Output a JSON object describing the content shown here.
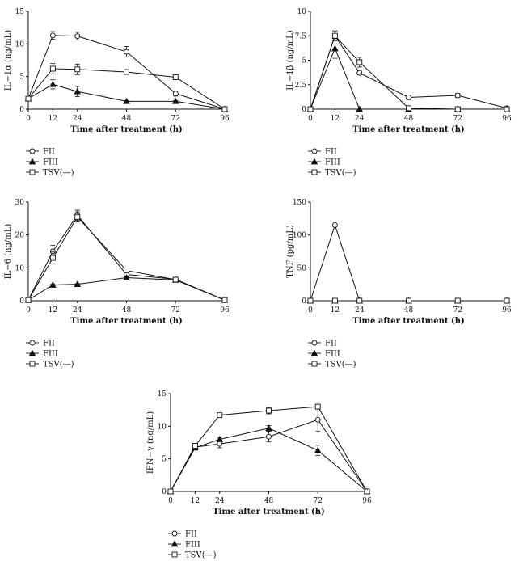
{
  "chart_data": [
    {
      "type": "line",
      "ylabel": "IL−1α (ng/mL)",
      "xlabel": "Time after treatment (h)",
      "x": [
        0,
        12,
        24,
        48,
        72,
        96
      ],
      "x_ticks": [
        "0",
        "12",
        "24",
        "48",
        "72",
        "96"
      ],
      "ylim": [
        0,
        15
      ],
      "y_ticks": [
        "0",
        "5",
        "10",
        "15"
      ],
      "grid": false,
      "legend_position": "below",
      "series": [
        {
          "name": "FII",
          "marker": "circle-open",
          "values": [
            1.6,
            11.3,
            11.2,
            8.8,
            2.4,
            0
          ],
          "errors": [
            0.3,
            0.6,
            0.6,
            0.8,
            0.4,
            0
          ]
        },
        {
          "name": "FIII",
          "marker": "triangle-filled",
          "values": [
            1.6,
            3.8,
            2.7,
            1.2,
            1.2,
            0
          ],
          "errors": [
            0.3,
            0.7,
            0.8,
            0.1,
            0.1,
            0
          ]
        },
        {
          "name": "TSV(—)",
          "marker": "square-open",
          "values": [
            1.6,
            6.2,
            6.1,
            5.7,
            4.9,
            0
          ],
          "errors": [
            0.3,
            0.8,
            0.8,
            0.1,
            0.1,
            0
          ]
        }
      ]
    },
    {
      "type": "line",
      "ylabel": "IL−1β (ng/mL)",
      "xlabel": "Time after treatment (h)",
      "x": [
        0,
        12,
        24,
        48,
        72,
        96
      ],
      "x_ticks": [
        "0",
        "12",
        "24",
        "48",
        "72",
        "96"
      ],
      "ylim": [
        0,
        10
      ],
      "y_ticks": [
        "0",
        "2.5",
        "5",
        "7.5",
        "10"
      ],
      "grid": false,
      "legend_position": "below",
      "series": [
        {
          "name": "FII",
          "marker": "circle-open",
          "values": [
            0,
            7.5,
            3.7,
            1.2,
            1.4,
            0.1
          ],
          "errors": [
            0,
            0.5,
            0.2,
            0.2,
            0.2,
            0
          ]
        },
        {
          "name": "FIII",
          "marker": "triangle-filled",
          "values": [
            0,
            6.2,
            0,
            0,
            0,
            0
          ],
          "errors": [
            0,
            1.0,
            0,
            0,
            0,
            0
          ]
        },
        {
          "name": "TSV(—)",
          "marker": "square-open",
          "values": [
            0,
            7.5,
            4.8,
            0.1,
            0,
            0
          ],
          "errors": [
            0,
            0.5,
            0.5,
            0,
            0,
            0
          ]
        }
      ]
    },
    {
      "type": "line",
      "ylabel": "IL−6 (ng/mL)",
      "xlabel": "Time after treatment (h)",
      "x": [
        0,
        12,
        24,
        48,
        72,
        96
      ],
      "x_ticks": [
        "0",
        "12",
        "24",
        "48",
        "72",
        "96"
      ],
      "ylim": [
        0,
        30
      ],
      "y_ticks": [
        "0",
        "10",
        "20",
        "30"
      ],
      "grid": false,
      "legend_position": "below",
      "series": [
        {
          "name": "FII",
          "marker": "circle-open",
          "values": [
            0.2,
            15.0,
            26.0,
            8.0,
            6.5,
            0.2
          ],
          "errors": [
            0,
            1.8,
            1.5,
            0.5,
            0.5,
            0
          ]
        },
        {
          "name": "FIII",
          "marker": "triangle-filled",
          "values": [
            0.2,
            4.8,
            5.0,
            7.0,
            6.3,
            0.2
          ],
          "errors": [
            0,
            0.2,
            0.2,
            0.3,
            0.3,
            0
          ]
        },
        {
          "name": "TSV(—)",
          "marker": "square-open",
          "values": [
            0.2,
            13.0,
            25.5,
            9.2,
            6.4,
            0.2
          ],
          "errors": [
            0,
            1.8,
            1.5,
            0.5,
            0.5,
            0
          ]
        }
      ]
    },
    {
      "type": "line",
      "ylabel": "TNF (pg/mL)",
      "xlabel": "Time after treatment (h)",
      "x": [
        0,
        12,
        24,
        48,
        72,
        96
      ],
      "x_ticks": [
        "0",
        "12",
        "24",
        "48",
        "72",
        "96"
      ],
      "ylim": [
        0,
        150
      ],
      "y_ticks": [
        "0",
        "50",
        "100",
        "150"
      ],
      "grid": false,
      "legend_position": "below",
      "series": [
        {
          "name": "FII",
          "marker": "circle-open",
          "values": [
            0,
            115,
            0,
            0,
            0,
            0
          ],
          "errors": [
            0,
            0,
            0,
            0,
            0,
            0
          ]
        },
        {
          "name": "FIII",
          "marker": "triangle-filled",
          "values": [
            0,
            0,
            0,
            0,
            0,
            0
          ],
          "errors": [
            0,
            0,
            0,
            0,
            0,
            0
          ]
        },
        {
          "name": "TSV(—)",
          "marker": "square-open",
          "values": [
            0,
            0,
            0,
            0,
            0,
            0
          ],
          "errors": [
            0,
            0,
            0,
            0,
            0,
            0
          ]
        }
      ]
    },
    {
      "type": "line",
      "ylabel": "IFN−γ (ng/mL)",
      "xlabel": "Time after treatment (h)",
      "x": [
        0,
        12,
        24,
        48,
        72,
        96
      ],
      "x_ticks": [
        "0",
        "12",
        "24",
        "48",
        "72",
        "96"
      ],
      "ylim": [
        0,
        15
      ],
      "y_ticks": [
        "0",
        "5",
        "10",
        "15"
      ],
      "grid": false,
      "legend_position": "below",
      "series": [
        {
          "name": "FII",
          "marker": "circle-open",
          "values": [
            0,
            6.8,
            7.3,
            8.4,
            11.0,
            0
          ],
          "errors": [
            0,
            0.3,
            0.6,
            0.8,
            1.8,
            0
          ]
        },
        {
          "name": "FIII",
          "marker": "triangle-filled",
          "values": [
            0,
            6.7,
            8.0,
            9.7,
            6.3,
            0
          ],
          "errors": [
            0,
            0.3,
            0.3,
            0.4,
            0.8,
            0
          ]
        },
        {
          "name": "TSV(—)",
          "marker": "square-open",
          "values": [
            0,
            7.0,
            11.7,
            12.4,
            13.0,
            0
          ],
          "errors": [
            0,
            0.2,
            0.2,
            0.5,
            0.2,
            0
          ]
        }
      ]
    }
  ]
}
